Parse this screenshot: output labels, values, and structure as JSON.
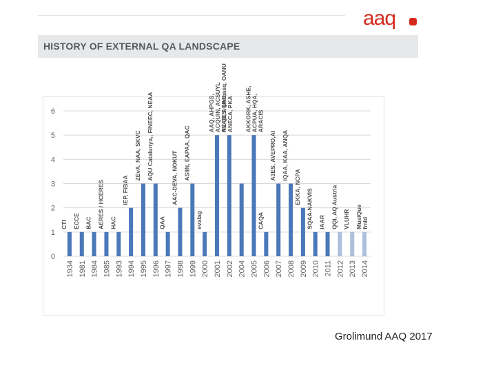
{
  "logo": {
    "text": "aaq"
  },
  "header": {
    "title": "HISTORY OF EXTERNAL QA LANDSCAPE"
  },
  "credit": "Grolimund AAQ 2017",
  "colors": {
    "bar": "#4a78b8",
    "bar_light": "#aebfdc",
    "axis_text": "#666666",
    "grid": "#d9d9d9",
    "brand": "#d42a1e"
  },
  "chart_data": {
    "type": "bar",
    "title": "HISTORY OF EXTERNAL QA LANDSCAPE",
    "xlabel": "",
    "ylabel": "",
    "ylim": [
      0,
      6
    ],
    "yticks": [
      "0",
      "1",
      "2",
      "3",
      "4",
      "5",
      "6"
    ],
    "categories": [
      "1934",
      "1981",
      "1984",
      "1985",
      "1993",
      "1994",
      "1995",
      "1996",
      "1997",
      "1998",
      "1999",
      "2000",
      "2001",
      "2002",
      "2004",
      "2005",
      "2006",
      "2007",
      "2008",
      "2009",
      "2010",
      "2011",
      "2012",
      "2013",
      "2014"
    ],
    "values": [
      1,
      1,
      1,
      1,
      1,
      2,
      3,
      3,
      1,
      2,
      3,
      1,
      5,
      5,
      3,
      5,
      1,
      3,
      3,
      2,
      1,
      1,
      1,
      1,
      1
    ],
    "highlight": [
      false,
      false,
      false,
      false,
      false,
      false,
      false,
      false,
      false,
      false,
      false,
      false,
      false,
      false,
      false,
      false,
      false,
      false,
      false,
      false,
      false,
      false,
      true,
      true,
      true
    ],
    "annotations": [
      [
        "CTI"
      ],
      [
        "ECCE"
      ],
      [
        "BAC"
      ],
      [
        "AERES / HCERES"
      ],
      [
        "HAC"
      ],
      [
        "IEP, FIBAA"
      ],
      [
        "ZEvA, NAA, SKVC"
      ],
      [
        "AQU Catalunya,, FINEEC, NEAA"
      ],
      [
        "QAA"
      ],
      [
        "AAC-DEVA, NOKUT"
      ],
      [
        "ASIIN, EAPAA, QAC"
      ],
      [
        "evalag"
      ],
      [
        "AAQ, AHPGS,",
        "ACQUIN, ACSUYL",
        "NVAO, AQAS,",
        "ANECA, PKA"
      ],
      [
        "AE QES, Unibasq, OANU"
      ],
      [],
      [
        "AKKORK, ASHE,",
        "ACPUA, HQA,",
        "ARACIS"
      ],
      [
        "CAQA"
      ],
      [
        "A3ES, AVEPRO,AI"
      ],
      [
        "IQAA, KAA, ANQA"
      ],
      [
        "EKKA, NCPA"
      ],
      [
        "SQAA-NAKVIS"
      ],
      [
        "IAAR"
      ],
      [
        "QQI, AQ Austria"
      ],
      [
        "VLUHR"
      ],
      [
        "MusiQue",
        "fmld"
      ]
    ]
  }
}
